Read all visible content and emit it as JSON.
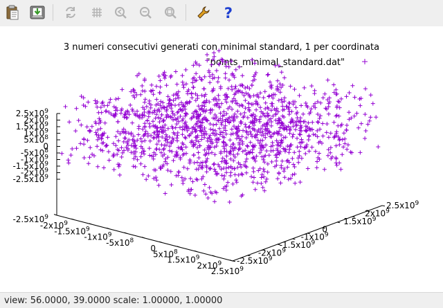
{
  "toolbar": {
    "buttons": [
      {
        "name": "copy-clipboard-icon",
        "enabled": true
      },
      {
        "name": "print-icon",
        "enabled": true
      },
      {
        "name": "replot-icon",
        "enabled": false
      },
      {
        "name": "grid-icon",
        "enabled": false
      },
      {
        "name": "zoom-previous-icon",
        "enabled": false
      },
      {
        "name": "zoom-next-icon",
        "enabled": false
      },
      {
        "name": "unzoom-icon",
        "enabled": false
      },
      {
        "name": "configure-icon",
        "enabled": true
      },
      {
        "name": "help-icon",
        "enabled": true
      }
    ]
  },
  "status": {
    "text": "view: 56.0000, 39.0000  scale: 1.00000, 1.00000"
  },
  "chart_data": {
    "type": "scatter",
    "title": "3 numeri consecutivi generati con minimal standard, 1 per coordinata",
    "legend": "\"points_minimal_standard.dat\"",
    "legend_position": "top-right",
    "marker": "+",
    "color": "#9400d3",
    "projection": "3d",
    "view": [
      56,
      39
    ],
    "xlim": [
      -2500000000,
      2500000000
    ],
    "ylim": [
      -2500000000,
      2500000000
    ],
    "zlim": [
      -2500000000,
      2500000000
    ],
    "x_ticks": [
      {
        "mant": "-2",
        "exp": "9"
      },
      {
        "mant": "-1.5",
        "exp": "9"
      },
      {
        "mant": "-1",
        "exp": "9"
      },
      {
        "mant": "-5",
        "exp": "8"
      },
      {
        "mant": "0",
        "exp": ""
      },
      {
        "mant": "5",
        "exp": "8"
      },
      {
        "mant": "1.5",
        "exp": "9"
      },
      {
        "mant": "2",
        "exp": "9"
      },
      {
        "mant": "2.5",
        "exp": "9"
      }
    ],
    "y_ticks": [
      {
        "mant": "-2.5",
        "exp": "9"
      },
      {
        "mant": "-2",
        "exp": "9"
      },
      {
        "mant": "-1.5",
        "exp": "9"
      },
      {
        "mant": "-1",
        "exp": "9"
      },
      {
        "mant": "0",
        "exp": ""
      },
      {
        "mant": "1.5",
        "exp": "9"
      },
      {
        "mant": "2",
        "exp": "9"
      },
      {
        "mant": "2.5",
        "exp": "9"
      }
    ],
    "z_ticks": [
      {
        "mant": "2.5",
        "exp": "9"
      },
      {
        "mant": "2",
        "exp": "9"
      },
      {
        "mant": "1.5",
        "exp": "9"
      },
      {
        "mant": "1",
        "exp": "9"
      },
      {
        "mant": "5",
        "exp": "8"
      },
      {
        "mant": "0",
        "exp": ""
      },
      {
        "mant": "-5",
        "exp": "8"
      },
      {
        "mant": "-1",
        "exp": "9"
      },
      {
        "mant": "-1.5",
        "exp": "9"
      },
      {
        "mant": "-2",
        "exp": "9"
      },
      {
        "mant": "-2.5",
        "exp": "9"
      }
    ],
    "base_corner_label": {
      "mant": "-2.5",
      "exp": "9"
    },
    "point_count": 1500
  }
}
